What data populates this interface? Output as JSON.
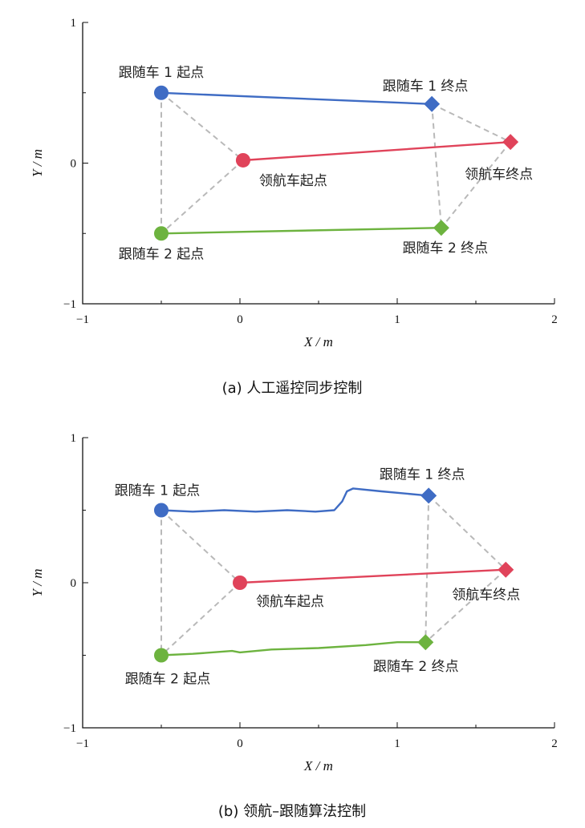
{
  "colors": {
    "follower1": "#3f6cc4",
    "leader": "#e0435a",
    "follower2": "#6db33f",
    "link": "#b9b9b9"
  },
  "chart_data": [
    {
      "type": "line",
      "caption": "(a)  人工遥控同步控制",
      "xlabel": "X / m",
      "ylabel": "Y / m",
      "xlim": [
        -1,
        2
      ],
      "ylim": [
        -1,
        1
      ],
      "xticks": [
        "−1",
        "0",
        "1",
        "2"
      ],
      "yticks": [
        "−1",
        "0",
        "1"
      ],
      "series": [
        {
          "key": "follower1",
          "points": [
            [
              -0.5,
              0.5
            ],
            [
              1.22,
              0.42
            ]
          ]
        },
        {
          "key": "leader",
          "points": [
            [
              0.02,
              0.02
            ],
            [
              1.72,
              0.15
            ]
          ]
        },
        {
          "key": "follower2",
          "points": [
            [
              -0.5,
              -0.5
            ],
            [
              1.28,
              -0.46
            ]
          ]
        }
      ],
      "markers": [
        {
          "key": "follower1",
          "shape": "circle",
          "x": -0.5,
          "y": 0.5,
          "label": "跟随车 1 起点"
        },
        {
          "key": "follower1",
          "shape": "diamond",
          "x": 1.22,
          "y": 0.42,
          "label": "跟随车 1 终点"
        },
        {
          "key": "leader",
          "shape": "circle",
          "x": 0.02,
          "y": 0.02,
          "label": "领航车起点"
        },
        {
          "key": "leader",
          "shape": "diamond",
          "x": 1.72,
          "y": 0.15,
          "label": "领航车终点"
        },
        {
          "key": "follower2",
          "shape": "circle",
          "x": -0.5,
          "y": -0.5,
          "label": "跟随车 2 起点"
        },
        {
          "key": "follower2",
          "shape": "diamond",
          "x": 1.28,
          "y": -0.46,
          "label": "跟随车 2 终点"
        }
      ],
      "formation_links": [
        [
          [
            -0.5,
            0.5
          ],
          [
            -0.5,
            -0.5
          ]
        ],
        [
          [
            -0.5,
            0.5
          ],
          [
            0.02,
            0.02
          ]
        ],
        [
          [
            0.02,
            0.02
          ],
          [
            -0.5,
            -0.5
          ]
        ],
        [
          [
            1.22,
            0.42
          ],
          [
            1.28,
            -0.46
          ]
        ],
        [
          [
            1.22,
            0.42
          ],
          [
            1.72,
            0.15
          ]
        ],
        [
          [
            1.72,
            0.15
          ],
          [
            1.28,
            -0.46
          ]
        ]
      ]
    },
    {
      "type": "line",
      "caption": "(b)  领航–跟随算法控制",
      "xlabel": "X / m",
      "ylabel": "Y / m",
      "xlim": [
        -1,
        2
      ],
      "ylim": [
        -1,
        1
      ],
      "xticks": [
        "−1",
        "0",
        "1",
        "2"
      ],
      "yticks": [
        "−1",
        "0",
        "1"
      ],
      "series": [
        {
          "key": "follower1",
          "points": [
            [
              -0.5,
              0.5
            ],
            [
              -0.3,
              0.49
            ],
            [
              -0.1,
              0.5
            ],
            [
              0.1,
              0.49
            ],
            [
              0.3,
              0.5
            ],
            [
              0.48,
              0.49
            ],
            [
              0.6,
              0.5
            ],
            [
              0.65,
              0.56
            ],
            [
              0.68,
              0.63
            ],
            [
              0.72,
              0.65
            ],
            [
              0.9,
              0.63
            ],
            [
              1.2,
              0.6
            ]
          ]
        },
        {
          "key": "leader",
          "points": [
            [
              0.0,
              0.0
            ],
            [
              1.69,
              0.09
            ]
          ]
        },
        {
          "key": "follower2",
          "points": [
            [
              -0.5,
              -0.5
            ],
            [
              -0.3,
              -0.49
            ],
            [
              -0.05,
              -0.47
            ],
            [
              0.0,
              -0.48
            ],
            [
              0.2,
              -0.46
            ],
            [
              0.5,
              -0.45
            ],
            [
              0.8,
              -0.43
            ],
            [
              1.0,
              -0.41
            ],
            [
              1.18,
              -0.41
            ]
          ]
        }
      ],
      "markers": [
        {
          "key": "follower1",
          "shape": "circle",
          "x": -0.5,
          "y": 0.5,
          "label": "跟随车 1 起点"
        },
        {
          "key": "follower1",
          "shape": "diamond",
          "x": 1.2,
          "y": 0.6,
          "label": "跟随车 1 终点"
        },
        {
          "key": "leader",
          "shape": "circle",
          "x": 0.0,
          "y": 0.0,
          "label": "领航车起点"
        },
        {
          "key": "leader",
          "shape": "diamond",
          "x": 1.69,
          "y": 0.09,
          "label": "领航车终点"
        },
        {
          "key": "follower2",
          "shape": "circle",
          "x": -0.5,
          "y": -0.5,
          "label": "跟随车 2 起点"
        },
        {
          "key": "follower2",
          "shape": "diamond",
          "x": 1.18,
          "y": -0.41,
          "label": "跟随车 2 终点"
        }
      ],
      "formation_links": [
        [
          [
            -0.5,
            0.5
          ],
          [
            -0.5,
            -0.5
          ]
        ],
        [
          [
            -0.5,
            0.5
          ],
          [
            0.0,
            0.0
          ]
        ],
        [
          [
            0.0,
            0.0
          ],
          [
            -0.5,
            -0.5
          ]
        ],
        [
          [
            1.2,
            0.6
          ],
          [
            1.18,
            -0.41
          ]
        ],
        [
          [
            1.2,
            0.6
          ],
          [
            1.69,
            0.09
          ]
        ],
        [
          [
            1.69,
            0.09
          ],
          [
            1.18,
            -0.41
          ]
        ]
      ]
    }
  ]
}
